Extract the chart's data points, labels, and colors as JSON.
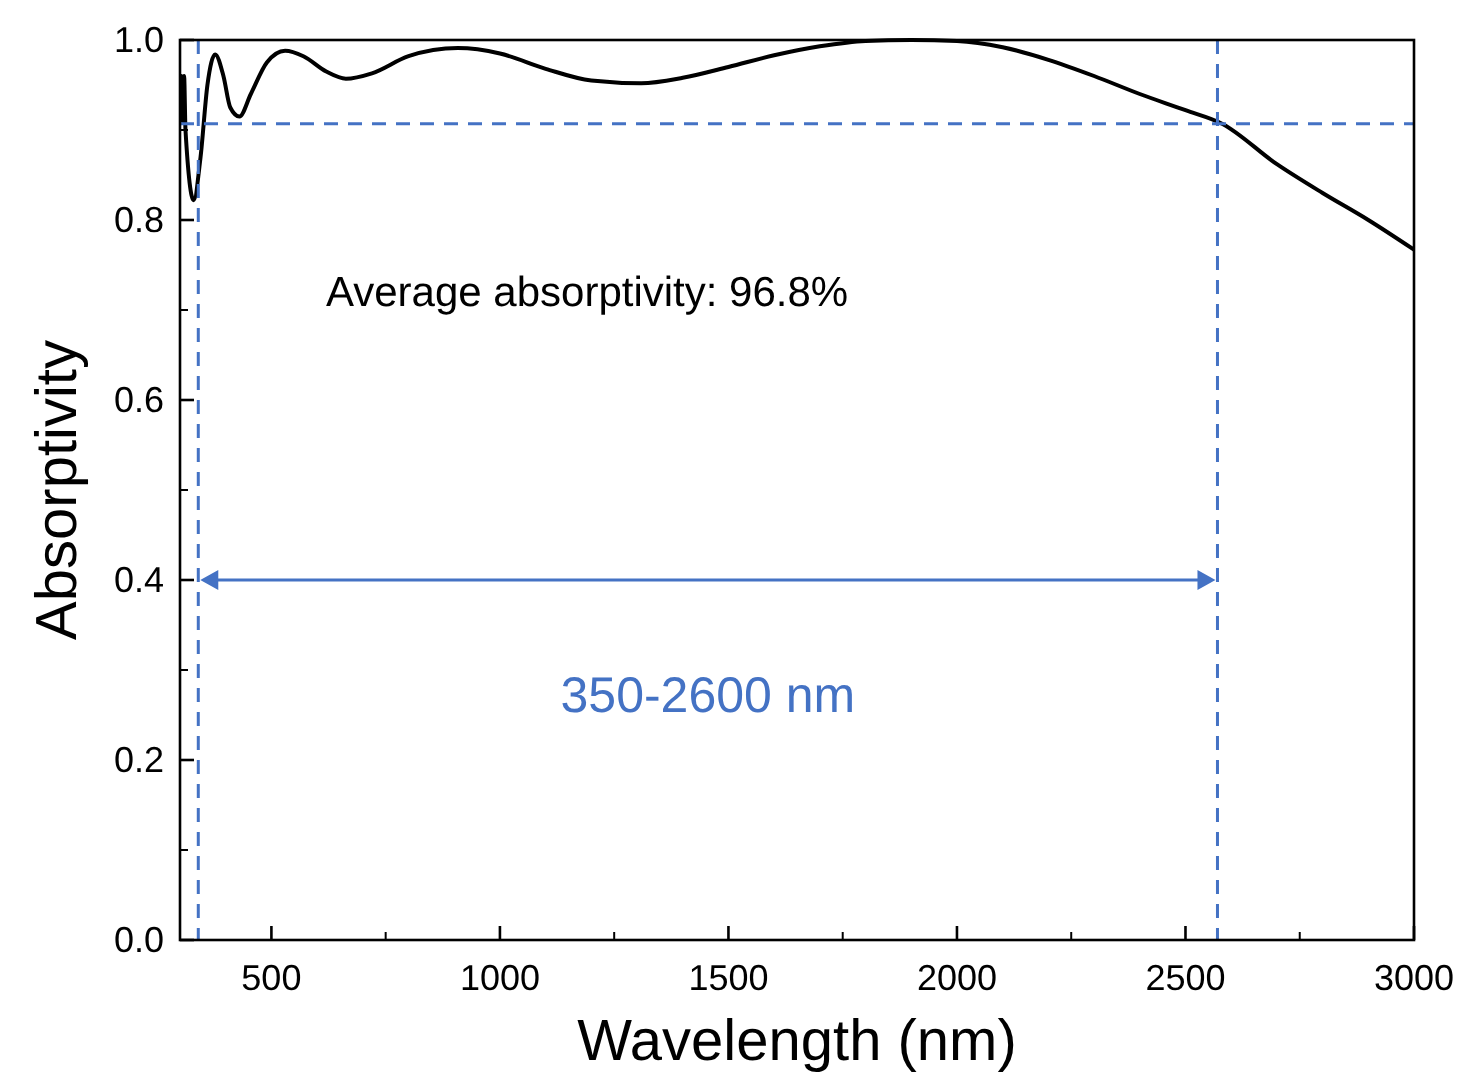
{
  "chart_data": {
    "type": "line",
    "xlabel": "Wavelength (nm)",
    "ylabel": "Absorptivity",
    "x": [
      300,
      303,
      306,
      309,
      312,
      330,
      345,
      360,
      377,
      395,
      410,
      430,
      455,
      490,
      530,
      570,
      620,
      663,
      720,
      800,
      908,
      1000,
      1100,
      1200,
      1309,
      1400,
      1500,
      1600,
      1700,
      1800,
      1900,
      2000,
      2100,
      2200,
      2300,
      2400,
      2500,
      2580,
      2700,
      2800,
      2900,
      3000
    ],
    "series": [
      {
        "color": "#000000",
        "values": [
          0.91,
          0.96,
          0.91,
          0.96,
          0.9,
          0.822,
          0.87,
          0.95,
          0.984,
          0.96,
          0.925,
          0.915,
          0.94,
          0.975,
          0.988,
          0.982,
          0.965,
          0.957,
          0.963,
          0.982,
          0.991,
          0.985,
          0.968,
          0.955,
          0.952,
          0.958,
          0.97,
          0.983,
          0.993,
          0.999,
          1.0,
          0.999,
          0.992,
          0.978,
          0.96,
          0.94,
          0.922,
          0.907,
          0.862,
          0.83,
          0.8,
          0.767
        ]
      }
    ],
    "xlim": [
      300,
      3000
    ],
    "xticks": [
      500,
      1000,
      1500,
      2000,
      2500,
      3000
    ],
    "ylim": [
      0,
      1
    ],
    "yticks": [
      {
        "value": 0,
        "label": "0.0"
      },
      {
        "value": 0.2,
        "label": "0.2"
      },
      {
        "value": 0.4,
        "label": "0.4"
      },
      {
        "value": 0.6,
        "label": "0.6"
      },
      {
        "value": 0.8,
        "label": "0.8"
      },
      {
        "value": 1,
        "label": "1.0"
      }
    ],
    "ref_lines": [
      {
        "axis": "x",
        "value": 340,
        "color": "#4472c4",
        "line_style": "dashed"
      },
      {
        "axis": "x",
        "value": 2570,
        "color": "#4472c4",
        "line_style": "dashed"
      },
      {
        "axis": "y",
        "value": 0.907,
        "color": "#4472c4",
        "line_style": "dashed"
      }
    ],
    "annotations": [
      "Average absorptivity: 96.8%",
      "350-2600 nm"
    ],
    "grid": false,
    "line_style": "solid",
    "marker": "none"
  }
}
